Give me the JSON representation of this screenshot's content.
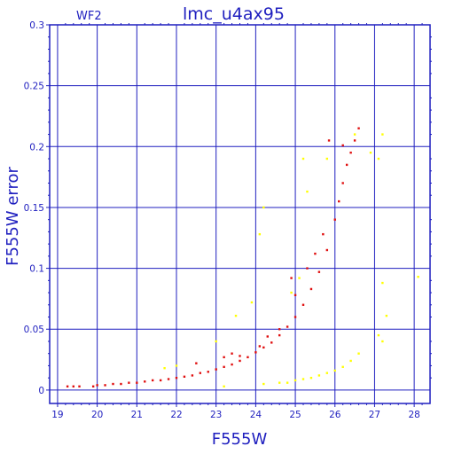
{
  "chart_data": {
    "type": "scatter",
    "title": "lmc_u4ax95",
    "panel_label": "WF2",
    "xlabel": "F555W",
    "ylabel": "F555W error",
    "xlim": [
      18.8,
      28.4
    ],
    "ylim": [
      -0.011,
      0.3
    ],
    "grid": true,
    "x_ticks": [
      "19",
      "20",
      "21",
      "22",
      "23",
      "24",
      "25",
      "26",
      "27",
      "28"
    ],
    "y_ticks": [
      "0",
      "0.05",
      "0.1",
      "0.15",
      "0.2",
      "0.25",
      "0.3"
    ],
    "axis_color": "#1f1fbf",
    "grid_color": "#1f1fbf",
    "series": [
      {
        "color": "#e01010",
        "points": [
          [
            19.25,
            0.003
          ],
          [
            19.4,
            0.003
          ],
          [
            19.55,
            0.003
          ],
          [
            19.9,
            0.003
          ],
          [
            20.0,
            0.004
          ],
          [
            20.2,
            0.004
          ],
          [
            20.4,
            0.005
          ],
          [
            20.6,
            0.005
          ],
          [
            20.8,
            0.006
          ],
          [
            21.0,
            0.006
          ],
          [
            21.2,
            0.007
          ],
          [
            21.4,
            0.008
          ],
          [
            21.6,
            0.008
          ],
          [
            21.8,
            0.009
          ],
          [
            22.0,
            0.01
          ],
          [
            22.2,
            0.011
          ],
          [
            22.4,
            0.012
          ],
          [
            22.6,
            0.014
          ],
          [
            22.8,
            0.015
          ],
          [
            23.0,
            0.017
          ],
          [
            23.2,
            0.019
          ],
          [
            23.4,
            0.021
          ],
          [
            23.6,
            0.024
          ],
          [
            23.8,
            0.027
          ],
          [
            24.0,
            0.031
          ],
          [
            24.2,
            0.035
          ],
          [
            24.4,
            0.039
          ],
          [
            24.6,
            0.045
          ],
          [
            24.8,
            0.052
          ],
          [
            25.0,
            0.06
          ],
          [
            25.2,
            0.07
          ],
          [
            25.4,
            0.083
          ],
          [
            25.6,
            0.097
          ],
          [
            25.8,
            0.115
          ],
          [
            26.0,
            0.14
          ],
          [
            26.1,
            0.155
          ],
          [
            26.2,
            0.17
          ],
          [
            26.3,
            0.185
          ],
          [
            26.4,
            0.195
          ],
          [
            26.5,
            0.205
          ],
          [
            26.6,
            0.215
          ],
          [
            22.5,
            0.022
          ],
          [
            23.2,
            0.027
          ],
          [
            23.6,
            0.028
          ],
          [
            24.1,
            0.036
          ],
          [
            24.6,
            0.05
          ],
          [
            25.0,
            0.078
          ],
          [
            25.3,
            0.1
          ],
          [
            25.5,
            0.112
          ],
          [
            25.7,
            0.128
          ],
          [
            25.85,
            0.205
          ],
          [
            26.2,
            0.201
          ],
          [
            24.9,
            0.092
          ],
          [
            23.4,
            0.03
          ],
          [
            24.3,
            0.044
          ]
        ]
      },
      {
        "color": "#ffff00",
        "points": [
          [
            23.2,
            0.003
          ],
          [
            24.2,
            0.005
          ],
          [
            24.6,
            0.006
          ],
          [
            24.8,
            0.006
          ],
          [
            25.0,
            0.008
          ],
          [
            25.2,
            0.009
          ],
          [
            25.4,
            0.01
          ],
          [
            25.6,
            0.012
          ],
          [
            25.8,
            0.014
          ],
          [
            26.0,
            0.016
          ],
          [
            26.2,
            0.019
          ],
          [
            26.4,
            0.024
          ],
          [
            26.6,
            0.03
          ],
          [
            21.7,
            0.018
          ],
          [
            22.0,
            0.02
          ],
          [
            23.0,
            0.04
          ],
          [
            23.5,
            0.061
          ],
          [
            23.9,
            0.072
          ],
          [
            24.1,
            0.128
          ],
          [
            24.2,
            0.15
          ],
          [
            24.9,
            0.08
          ],
          [
            25.1,
            0.092
          ],
          [
            25.2,
            0.19
          ],
          [
            25.3,
            0.163
          ],
          [
            25.8,
            0.19
          ],
          [
            26.5,
            0.21
          ],
          [
            26.9,
            0.195
          ],
          [
            27.1,
            0.19
          ],
          [
            27.2,
            0.21
          ],
          [
            27.2,
            0.088
          ],
          [
            27.3,
            0.061
          ],
          [
            27.2,
            0.04
          ],
          [
            27.1,
            0.045
          ],
          [
            28.1,
            0.093
          ]
        ]
      }
    ]
  }
}
